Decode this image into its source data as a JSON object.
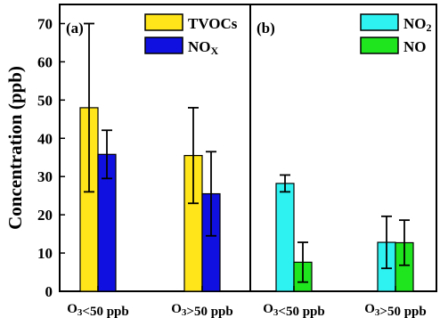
{
  "chart_data": [
    {
      "panel": "(a)",
      "type": "bar",
      "categories": [
        "O₃<50 ppb",
        "O₃>50 ppb"
      ],
      "series": [
        {
          "name": "TVOCs",
          "color": "#FFE51A",
          "values": [
            48.0,
            35.5
          ],
          "errors": [
            22.0,
            12.5
          ]
        },
        {
          "name": "NOₓ",
          "color": "#1010E0",
          "values": [
            35.8,
            25.5
          ],
          "errors": [
            6.3,
            11.0
          ]
        }
      ],
      "ylabel": "Concentration (ppb)",
      "ylim": [
        0,
        75
      ],
      "yticks": [
        0,
        10,
        20,
        30,
        40,
        50,
        60,
        70
      ],
      "legend": "top-right",
      "grid": false
    },
    {
      "panel": "(b)",
      "type": "bar",
      "categories": [
        "O₃<50 ppb",
        "O₃>50 ppb"
      ],
      "series": [
        {
          "name": "NO₂",
          "color": "#2EF2F2",
          "values": [
            28.2,
            12.8
          ],
          "errors": [
            2.2,
            6.8
          ]
        },
        {
          "name": "NO",
          "color": "#1FE51F",
          "values": [
            7.6,
            12.7
          ],
          "errors": [
            5.2,
            5.9
          ]
        }
      ],
      "ylim": [
        0,
        75
      ],
      "legend": "top-right",
      "grid": false
    }
  ]
}
